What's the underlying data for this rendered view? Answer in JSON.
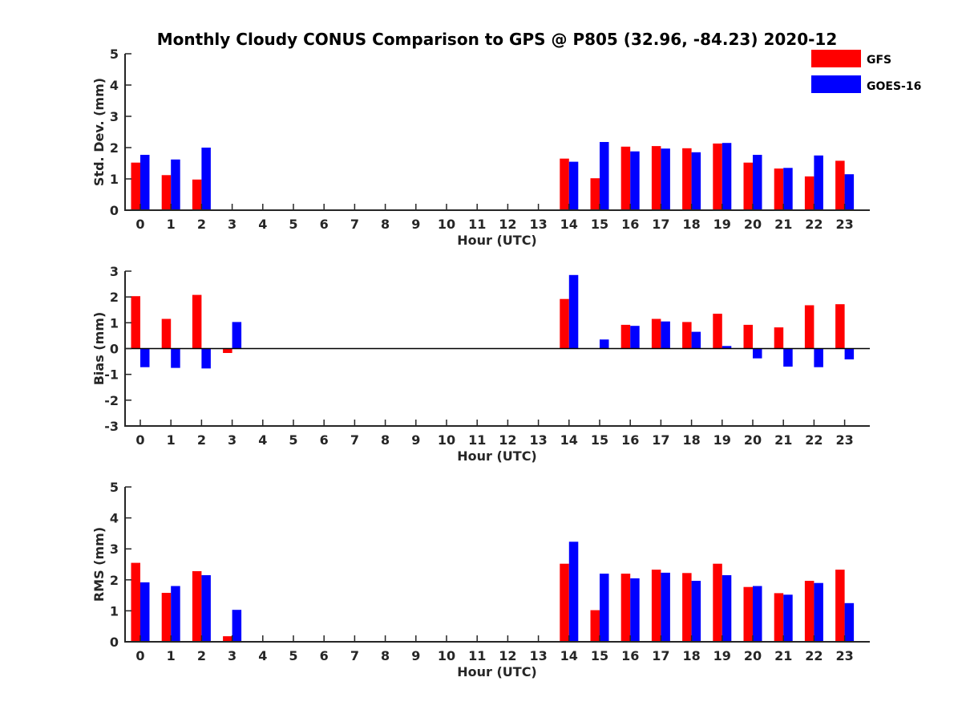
{
  "title": "Monthly Cloudy CONUS Comparison to GPS @ P805 (32.96, -84.23) 2020-12",
  "legend": {
    "placement": "top-right",
    "entries": [
      "GFS",
      "GOES-16"
    ]
  },
  "colors": {
    "GFS": "#ff0000",
    "GOES-16": "#0000ff"
  },
  "chart_data": [
    {
      "type": "bar",
      "xlabel": "Hour (UTC)",
      "ylabel": "Std. Dev. (mm)",
      "ylim": [
        0,
        5
      ],
      "yticks": [
        0,
        1,
        2,
        3,
        4,
        5
      ],
      "categories": [
        "0",
        "1",
        "2",
        "3",
        "4",
        "5",
        "6",
        "7",
        "8",
        "9",
        "10",
        "11",
        "12",
        "13",
        "14",
        "15",
        "16",
        "17",
        "18",
        "19",
        "20",
        "21",
        "22",
        "23"
      ],
      "series": [
        {
          "name": "GFS",
          "values": [
            1.52,
            1.12,
            0.98,
            null,
            null,
            null,
            null,
            null,
            null,
            null,
            null,
            null,
            null,
            null,
            1.65,
            1.02,
            2.03,
            2.05,
            1.98,
            2.13,
            1.52,
            1.33,
            1.08,
            1.58
          ]
        },
        {
          "name": "GOES-16",
          "values": [
            1.77,
            1.62,
            2.0,
            null,
            null,
            null,
            null,
            null,
            null,
            null,
            null,
            null,
            null,
            null,
            1.55,
            2.18,
            1.88,
            1.97,
            1.85,
            2.15,
            1.77,
            1.35,
            1.75,
            1.15
          ]
        }
      ]
    },
    {
      "type": "bar",
      "xlabel": "Hour (UTC)",
      "ylabel": "Bias (mm)",
      "ylim": [
        -3,
        3
      ],
      "yticks": [
        -3,
        -2,
        -1,
        0,
        1,
        2,
        3
      ],
      "zero_line": true,
      "categories": [
        "0",
        "1",
        "2",
        "3",
        "4",
        "5",
        "6",
        "7",
        "8",
        "9",
        "10",
        "11",
        "12",
        "13",
        "14",
        "15",
        "16",
        "17",
        "18",
        "19",
        "20",
        "21",
        "22",
        "23"
      ],
      "series": [
        {
          "name": "GFS",
          "values": [
            2.03,
            1.15,
            2.08,
            -0.17,
            null,
            null,
            null,
            null,
            null,
            null,
            null,
            null,
            null,
            null,
            1.92,
            null,
            0.92,
            1.15,
            1.03,
            1.35,
            0.92,
            0.82,
            1.68,
            1.72
          ]
        },
        {
          "name": "GOES-16",
          "values": [
            -0.72,
            -0.75,
            -0.77,
            1.03,
            null,
            null,
            null,
            null,
            null,
            null,
            null,
            null,
            null,
            null,
            2.85,
            0.35,
            0.88,
            1.05,
            0.65,
            0.1,
            -0.38,
            -0.7,
            -0.72,
            -0.42
          ]
        }
      ]
    },
    {
      "type": "bar",
      "xlabel": "Hour (UTC)",
      "ylabel": "RMS (mm)",
      "ylim": [
        0,
        5
      ],
      "yticks": [
        0,
        1,
        2,
        3,
        4,
        5
      ],
      "categories": [
        "0",
        "1",
        "2",
        "3",
        "4",
        "5",
        "6",
        "7",
        "8",
        "9",
        "10",
        "11",
        "12",
        "13",
        "14",
        "15",
        "16",
        "17",
        "18",
        "19",
        "20",
        "21",
        "22",
        "23"
      ],
      "series": [
        {
          "name": "GFS",
          "values": [
            2.55,
            1.58,
            2.28,
            0.18,
            null,
            null,
            null,
            null,
            null,
            null,
            null,
            null,
            null,
            null,
            2.52,
            1.02,
            2.2,
            2.33,
            2.22,
            2.52,
            1.77,
            1.57,
            1.97,
            2.33
          ]
        },
        {
          "name": "GOES-16",
          "values": [
            1.92,
            1.8,
            2.15,
            1.03,
            null,
            null,
            null,
            null,
            null,
            null,
            null,
            null,
            null,
            null,
            3.23,
            2.2,
            2.05,
            2.23,
            1.97,
            2.15,
            1.8,
            1.52,
            1.9,
            1.25
          ]
        }
      ]
    }
  ]
}
